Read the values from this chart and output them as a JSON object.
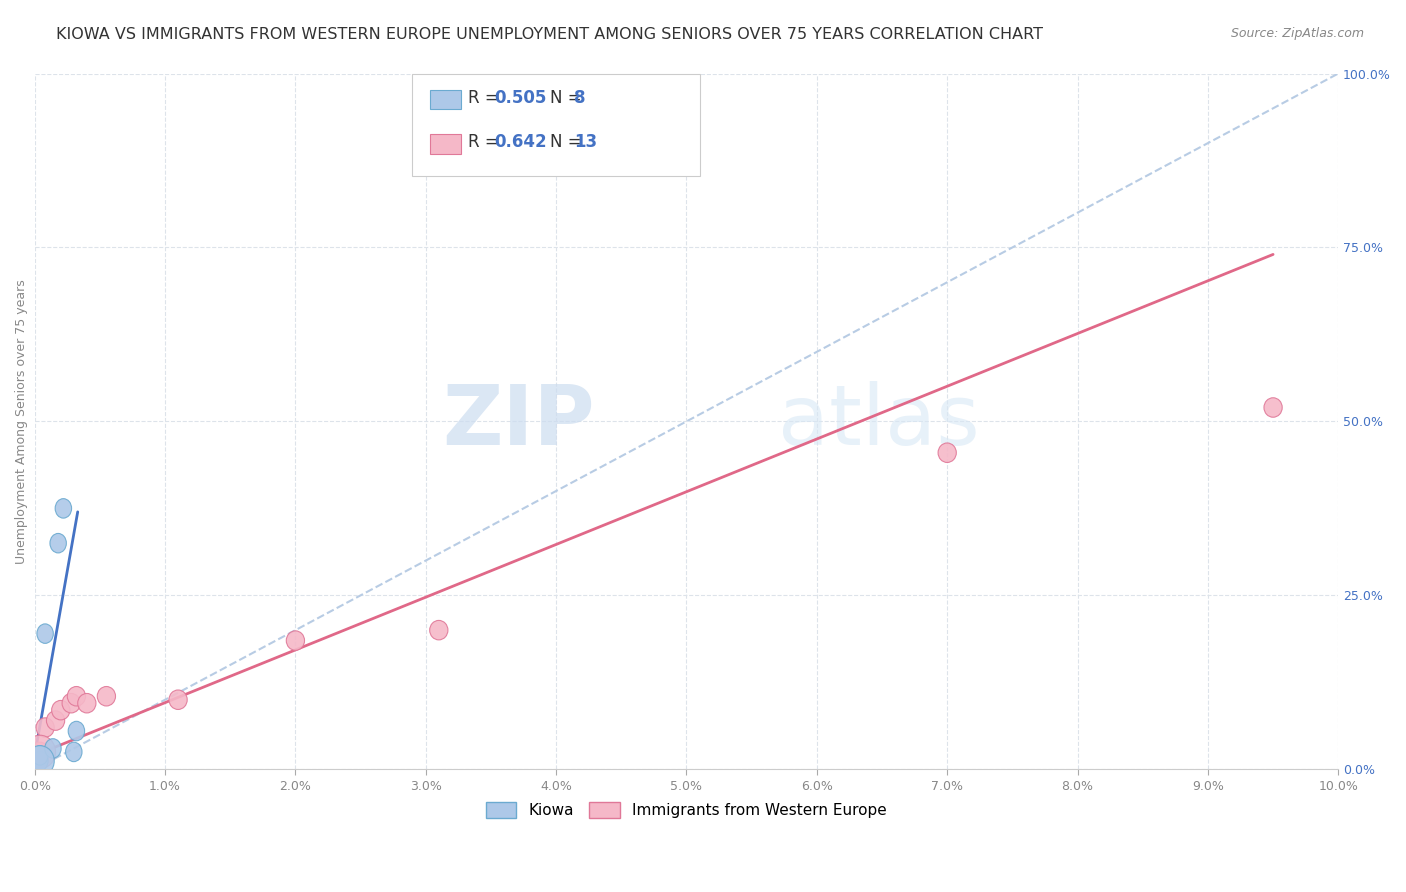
{
  "title": "KIOWA VS IMMIGRANTS FROM WESTERN EUROPE UNEMPLOYMENT AMONG SENIORS OVER 75 YEARS CORRELATION CHART",
  "source": "Source: ZipAtlas.com",
  "ylabel": "Unemployment Among Seniors over 75 years",
  "xlim": [
    0,
    0.1
  ],
  "ylim": [
    0,
    1.0
  ],
  "xticks": [
    0.0,
    0.01,
    0.02,
    0.03,
    0.04,
    0.05,
    0.06,
    0.07,
    0.08,
    0.09,
    0.1
  ],
  "xticklabels": [
    "0.0%",
    "1.0%",
    "2.0%",
    "3.0%",
    "4.0%",
    "5.0%",
    "6.0%",
    "7.0%",
    "8.0%",
    "9.0%",
    "10.0%"
  ],
  "yticks": [
    0.0,
    0.25,
    0.5,
    0.75,
    1.0
  ],
  "yticklabels": [
    "0.0%",
    "25.0%",
    "50.0%",
    "75.0%",
    "100.0%"
  ],
  "kiowa_color": "#adc8e8",
  "kiowa_edge_color": "#6baad0",
  "pink_color": "#f5b8c8",
  "pink_edge_color": "#e07898",
  "blue_line_color": "#4472c4",
  "pink_line_color": "#e06888",
  "diag_line_color": "#b8cce4",
  "background_color": "#ffffff",
  "grid_color": "#dde3ea",
  "legend_label_kiowa": "Kiowa",
  "legend_label_pink": "Immigrants from Western Europe",
  "kiowa_x": [
    0.0004,
    0.0004,
    0.0008,
    0.0014,
    0.0018,
    0.0022,
    0.003,
    0.0032
  ],
  "kiowa_y": [
    0.012,
    0.02,
    0.195,
    0.03,
    0.325,
    0.375,
    0.025,
    0.055
  ],
  "pink_x": [
    0.0004,
    0.0008,
    0.0016,
    0.002,
    0.0028,
    0.0032,
    0.004,
    0.0055,
    0.011,
    0.02,
    0.031,
    0.07,
    0.095
  ],
  "pink_y": [
    0.025,
    0.06,
    0.07,
    0.085,
    0.095,
    0.105,
    0.095,
    0.105,
    0.1,
    0.185,
    0.2,
    0.455,
    0.52
  ],
  "blue_line_x": [
    0.0,
    0.0033
  ],
  "blue_line_y": [
    0.02,
    0.37
  ],
  "pink_line_x": [
    0.0,
    0.095
  ],
  "pink_line_y": [
    0.02,
    0.74
  ],
  "diag_line_x": [
    0.0,
    0.1
  ],
  "diag_line_y": [
    0.0,
    1.0
  ],
  "watermark_zip": "ZIP",
  "watermark_atlas": "atlas",
  "watermark_color": "#ccddf0",
  "title_fontsize": 11.5,
  "axis_label_fontsize": 9,
  "tick_fontsize": 9,
  "source_fontsize": 9,
  "legend_fontsize": 12
}
